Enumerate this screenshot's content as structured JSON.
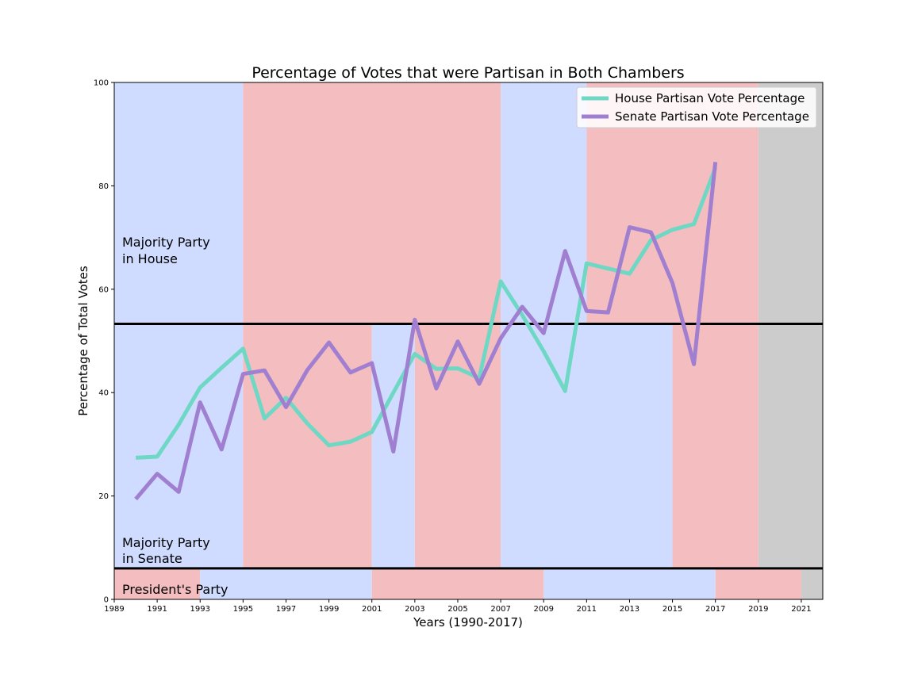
{
  "chart_data": {
    "type": "line",
    "title": "Percentage of Votes that were Partisan in Both Chambers",
    "xlabel": "Years (1990-2017)",
    "ylabel": "Percentage of Total Votes",
    "xlim": [
      1989,
      2022
    ],
    "ylim": [
      0,
      100
    ],
    "x_ticks": [
      "1989",
      "1991",
      "1993",
      "1995",
      "1997",
      "1999",
      "2001",
      "2003",
      "2005",
      "2007",
      "2009",
      "2011",
      "2013",
      "2015",
      "2017",
      "2019",
      "2021"
    ],
    "y_ticks": [
      "0",
      "20",
      "40",
      "60",
      "80",
      "100"
    ],
    "x": [
      1990,
      1991,
      1992,
      1993,
      1994,
      1995,
      1996,
      1997,
      1998,
      1999,
      2000,
      2001,
      2002,
      2003,
      2004,
      2005,
      2006,
      2007,
      2008,
      2009,
      2010,
      2011,
      2012,
      2013,
      2014,
      2015,
      2016,
      2017
    ],
    "series": [
      {
        "name": "House Partisan Vote Percentage",
        "color": "#6ed8c4",
        "values": [
          27.4,
          27.6,
          33.8,
          41.0,
          44.8,
          48.5,
          35.0,
          39.0,
          34.0,
          29.8,
          30.5,
          32.4,
          40.0,
          47.5,
          44.6,
          44.7,
          42.8,
          61.5,
          55.0,
          48.0,
          40.3,
          65.0,
          64.0,
          63.0,
          69.5,
          71.5,
          72.6,
          83.5
        ]
      },
      {
        "name": "Senate Partisan Vote Percentage",
        "color": "#a07fd0",
        "values": [
          19.4,
          24.3,
          20.8,
          38.1,
          29.0,
          43.6,
          44.3,
          37.2,
          44.4,
          49.7,
          43.9,
          45.7,
          28.6,
          54.1,
          40.8,
          49.9,
          41.7,
          50.5,
          56.6,
          51.5,
          67.4,
          55.8,
          55.5,
          72.0,
          71.0,
          61.2,
          45.5,
          84.6
        ]
      }
    ],
    "band_colors": {
      "D": "#cfdcff",
      "R": "#f4bdbf",
      "none": "#cccccc"
    },
    "bands": {
      "house": [
        {
          "from": 1989,
          "to": 1995,
          "party": "D"
        },
        {
          "from": 1995,
          "to": 2007,
          "party": "R"
        },
        {
          "from": 2007,
          "to": 2011,
          "party": "D"
        },
        {
          "from": 2011,
          "to": 2019,
          "party": "R"
        },
        {
          "from": 2019,
          "to": 2022,
          "party": "none"
        }
      ],
      "senate": [
        {
          "from": 1989,
          "to": 1995,
          "party": "D"
        },
        {
          "from": 1995,
          "to": 2001,
          "party": "R"
        },
        {
          "from": 2001,
          "to": 2003,
          "party": "D"
        },
        {
          "from": 2003,
          "to": 2007,
          "party": "R"
        },
        {
          "from": 2007,
          "to": 2015,
          "party": "D"
        },
        {
          "from": 2015,
          "to": 2019,
          "party": "R"
        },
        {
          "from": 2019,
          "to": 2022,
          "party": "none"
        }
      ],
      "president": [
        {
          "from": 1989,
          "to": 1993,
          "party": "R"
        },
        {
          "from": 1993,
          "to": 2001,
          "party": "D"
        },
        {
          "from": 2001,
          "to": 2009,
          "party": "R"
        },
        {
          "from": 2009,
          "to": 2017,
          "party": "D"
        },
        {
          "from": 2017,
          "to": 2021,
          "party": "R"
        },
        {
          "from": 2021,
          "to": 2022,
          "party": "none"
        }
      ]
    },
    "band_dividers_y": [
      6,
      53.3
    ],
    "region_labels": {
      "house": [
        "Majority Party",
        "in House"
      ],
      "senate": [
        "Majority Party",
        "in Senate"
      ],
      "president": "President's Party"
    },
    "legend_position": "top-right",
    "grid": false
  }
}
